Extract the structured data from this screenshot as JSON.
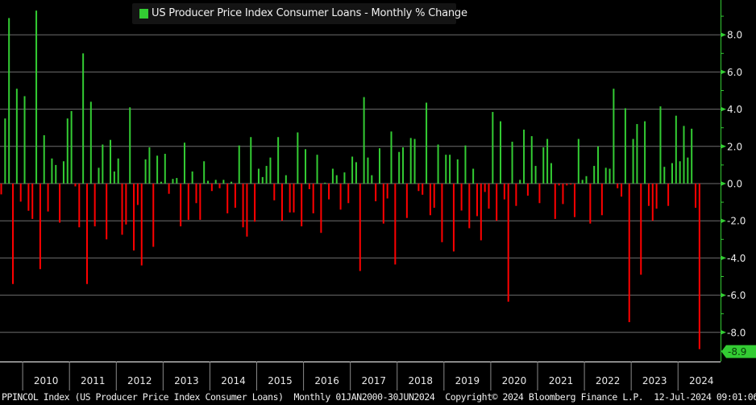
{
  "chart_data": {
    "type": "bar",
    "title": "US Producer Price Index Consumer Loans - Monthly % Change",
    "legend": [
      {
        "label": "US Producer Price Index Consumer Loans - Monthly % Change",
        "color": "#33cc33"
      }
    ],
    "legend_placement": "top-center",
    "xlabel": "",
    "ylabel": "",
    "frequency": "Monthly",
    "x_start": "2009-07",
    "x_end": "2024-06",
    "x_tick_labels": [
      "2010",
      "2011",
      "2012",
      "2013",
      "2014",
      "2015",
      "2016",
      "2017",
      "2018",
      "2019",
      "2020",
      "2021",
      "2022",
      "2023",
      "2024"
    ],
    "y_ticks": [
      8.0,
      6.0,
      4.0,
      2.0,
      0.0,
      -2.0,
      -4.0,
      -6.0,
      -8.0
    ],
    "y_tick_labels": [
      "8.0",
      "6.0",
      "4.0",
      "2.0",
      "0.0",
      "-2.0",
      "-4.0",
      "-6.0",
      "-8.0"
    ],
    "ylim": [
      -9.6,
      9.8
    ],
    "y_axis_position": "right",
    "grid": true,
    "positive_color": "#33cc33",
    "negative_color": "#ff0000",
    "last_value": -8.9,
    "last_value_label": "-8.9",
    "values": [
      -0.58,
      3.5,
      8.9,
      -5.4,
      5.1,
      -0.97,
      4.7,
      -1.46,
      -1.9,
      9.3,
      -4.6,
      2.6,
      -1.5,
      1.35,
      1.0,
      -2.1,
      1.2,
      3.5,
      3.9,
      -0.15,
      -2.35,
      7.0,
      -5.4,
      4.4,
      -2.3,
      0.85,
      2.1,
      -3.0,
      2.35,
      0.65,
      1.35,
      -2.75,
      -2.2,
      4.1,
      -3.6,
      -1.15,
      -4.4,
      1.3,
      1.95,
      -3.4,
      1.5,
      0.1,
      1.6,
      -0.55,
      0.25,
      0.3,
      -2.3,
      2.2,
      -1.95,
      0.65,
      -1.05,
      -1.95,
      1.2,
      0.15,
      -0.4,
      0.2,
      -0.25,
      0.2,
      -1.6,
      0.1,
      -1.3,
      2.05,
      -2.35,
      -2.85,
      2.5,
      -2.05,
      0.8,
      0.35,
      0.95,
      1.4,
      -0.9,
      2.5,
      -2.0,
      0.45,
      -1.55,
      -1.55,
      2.75,
      -2.3,
      1.85,
      -0.3,
      -1.6,
      1.55,
      -2.65,
      0.05,
      -0.85,
      0.8,
      0.45,
      -1.4,
      0.6,
      -1.05,
      1.45,
      1.15,
      -4.7,
      4.65,
      1.4,
      0.45,
      -0.95,
      1.9,
      -2.15,
      -0.8,
      2.8,
      -4.35,
      1.7,
      1.95,
      -1.85,
      2.45,
      2.4,
      -0.4,
      -0.6,
      4.35,
      -1.7,
      -1.3,
      2.1,
      -3.15,
      1.55,
      1.55,
      -3.65,
      1.3,
      -1.45,
      2.05,
      -2.4,
      0.8,
      -1.75,
      -3.05,
      -0.45,
      -1.35,
      3.85,
      -2.0,
      3.35,
      -0.85,
      -6.35,
      2.25,
      -1.2,
      0.2,
      2.9,
      -0.65,
      2.55,
      0.95,
      -1.05,
      1.95,
      2.4,
      1.1,
      -1.9,
      -0.1,
      -1.1,
      -0.1,
      -0.05,
      -1.8,
      2.4,
      0.2,
      0.4,
      -2.15,
      0.95,
      2.0,
      -1.7,
      0.85,
      0.8,
      5.1,
      -0.25,
      -0.7,
      4.05,
      -7.45,
      2.4,
      3.2,
      -4.9,
      3.35,
      -1.2,
      -2.0,
      -1.35,
      4.15,
      0.9,
      -1.2,
      1.1,
      3.65,
      1.2,
      3.1,
      1.4,
      2.95,
      -1.3,
      -8.9
    ]
  },
  "footer": {
    "ticker": "PPINCOL Index (US Producer Price Index Consumer Loans)",
    "range": "Monthly 01JAN2000-30JUN2024",
    "copyright": "Copyright© 2024 Bloomberg Finance L.P.",
    "timestamp": "12-Jul-2024 09:01:06"
  }
}
